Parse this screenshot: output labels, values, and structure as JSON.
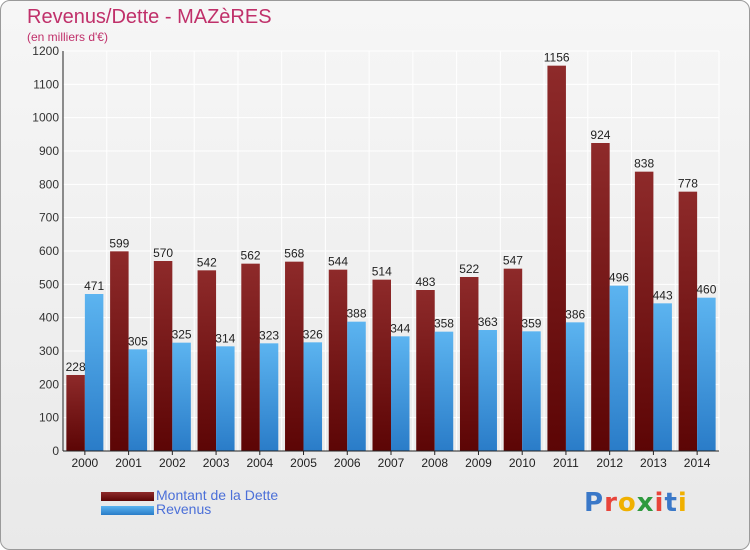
{
  "header": {
    "title": "Revenus/Dette - MAZèRES",
    "subtitle": "(en milliers d'€)"
  },
  "chart_data": {
    "type": "bar",
    "categories": [
      "2000",
      "2001",
      "2002",
      "2003",
      "2004",
      "2005",
      "2006",
      "2007",
      "2008",
      "2009",
      "2010",
      "2011",
      "2012",
      "2013",
      "2014"
    ],
    "series": [
      {
        "name": "Montant de la Dette",
        "color": "#8b1c1c",
        "values": [
          228,
          599,
          570,
          542,
          562,
          568,
          544,
          514,
          483,
          522,
          547,
          1156,
          924,
          838,
          778
        ]
      },
      {
        "name": "Revenus",
        "color": "#3a96de",
        "values": [
          471,
          305,
          325,
          314,
          323,
          326,
          388,
          344,
          358,
          363,
          359,
          386,
          496,
          443,
          460
        ]
      }
    ],
    "ylim": [
      0,
      1200
    ],
    "yticks": [
      0,
      100,
      200,
      300,
      400,
      500,
      600,
      700,
      800,
      900,
      1000,
      1100,
      1200
    ],
    "grid": true,
    "legend_position": "bottom-left"
  },
  "legend": {
    "items": [
      {
        "label": "Montant de la Dette",
        "color": "#8b1c1c"
      },
      {
        "label": "Revenus",
        "color": "#3a96de"
      }
    ]
  },
  "logo": {
    "letters": [
      "P",
      "r",
      "o",
      "x",
      "i",
      "t",
      "i"
    ],
    "colors": [
      "#3a78c8",
      "#e8443a",
      "#f0b000",
      "#2e9a3e",
      "#e8443a",
      "#3a78c8",
      "#f0b000"
    ]
  }
}
